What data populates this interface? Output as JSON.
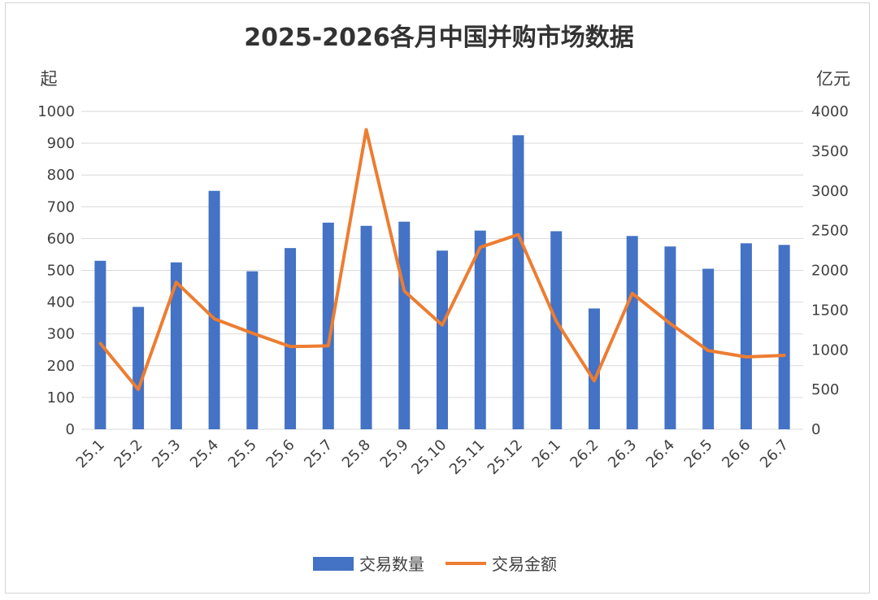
{
  "chart_data": {
    "type": "bar",
    "title": "2025-2026各月中国并购市场数据",
    "categories": [
      "25.1",
      "25.2",
      "25.3",
      "25.4",
      "25.5",
      "25.6",
      "25.7",
      "25.8",
      "25.9",
      "25.10",
      "25.11",
      "25.12",
      "26.1",
      "26.2",
      "26.3",
      "26.4",
      "26.5",
      "26.6",
      "26.7"
    ],
    "series": [
      {
        "name": "交易数量",
        "type": "bar",
        "axis": "left",
        "color": "#4472C4",
        "values": [
          530,
          385,
          525,
          750,
          497,
          570,
          650,
          640,
          653,
          562,
          625,
          925,
          623,
          380,
          608,
          575,
          505,
          585,
          580
        ]
      },
      {
        "name": "交易金额",
        "type": "line",
        "axis": "right",
        "color": "#ED7D31",
        "values": [
          1080,
          500,
          1850,
          1390,
          1210,
          1040,
          1050,
          3770,
          1740,
          1310,
          2290,
          2450,
          1360,
          610,
          1710,
          1330,
          990,
          910,
          930
        ]
      }
    ],
    "y_left": {
      "unit": "起",
      "ylim": [
        0,
        1000
      ],
      "ticks": [
        "0",
        "100",
        "200",
        "300",
        "400",
        "500",
        "600",
        "700",
        "800",
        "900",
        "1000"
      ]
    },
    "y_right": {
      "unit": "亿元",
      "ylim": [
        0,
        4000
      ],
      "ticks": [
        "0",
        "500",
        "1000",
        "1500",
        "2000",
        "2500",
        "3000",
        "3500",
        "4000"
      ]
    },
    "grid": true,
    "legend": "bottom"
  }
}
